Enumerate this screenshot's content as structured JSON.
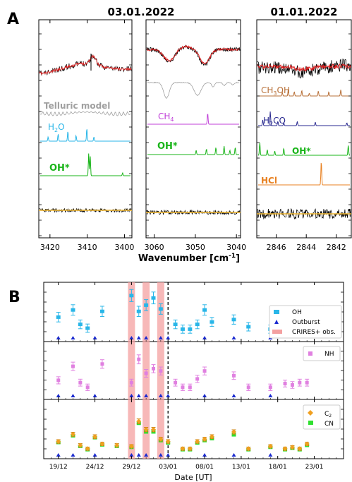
{
  "panel_a": {
    "letter": "A",
    "dates": {
      "left": "03.01.2022",
      "right": "01.01.2022"
    },
    "xlabel": "Wavenumber [cm",
    "xlabel_sup": "-1",
    "xlabel_tail": "]",
    "labels": {
      "telluric": "Telluric model",
      "h2o": "H",
      "h2o_sub": "2",
      "h2o_tail": "O",
      "oh_left": "OH*",
      "ch4": "CH",
      "ch4_sub": "4",
      "oh_mid": "OH*",
      "ch3oh": "CH",
      "ch3oh_sub": "3",
      "ch3oh_tail": "OH",
      "h2co": "H",
      "h2co_sub": "2",
      "h2co_tail": "CO",
      "oh_right": "OH*",
      "hcl": "HCl"
    },
    "colors": {
      "observed": "#000000",
      "model": "#e02020",
      "telluric": "#a0a0a0",
      "h2o": "#29b6e8",
      "oh": "#18b418",
      "ch4": "#c040d8",
      "ch3oh": "#b87038",
      "h2co": "#2a2a90",
      "hcl": "#e88020",
      "residual_fit": "#f2b830"
    }
  },
  "panel_b": {
    "letter": "B",
    "xlabel": "Date [UT]",
    "legend": {
      "oh": "OH",
      "outburst": "Outburst",
      "crires": "CRIRES+ obs.",
      "nh": "NH",
      "c2": "C",
      "c2_sub": "2",
      "cn": "CN"
    },
    "colors": {
      "oh": "#29b6e8",
      "outburst": "#1a2ad0",
      "crires": "#f4a0a0",
      "nh": "#e080e0",
      "c2": "#f0a020",
      "cn": "#30e030"
    }
  },
  "chart_data": [
    {
      "type": "line",
      "panel": "A-left",
      "xlabel": "Wavenumber [cm-1]",
      "xlim": [
        3423,
        3398
      ],
      "xticks": [
        3420,
        3410,
        3400
      ],
      "tick_labels": [
        "3420",
        "3410",
        "3400"
      ],
      "series": [
        {
          "x": [
            3420.5,
            3417.8,
            3415.2,
            3413.0,
            3410.1,
            3408.2
          ]
        },
        {
          "x": [
            3409.6,
            3409.2,
            3400.5
          ]
        }
      ]
    },
    {
      "type": "line",
      "panel": "A-middle",
      "xlabel": "Wavenumber [cm-1]",
      "xlim": [
        3062,
        3039
      ],
      "xticks": [
        3060,
        3050,
        3040
      ],
      "tick_labels": [
        "3060",
        "3050",
        "3040"
      ],
      "series": [
        {
          "x": [
            3047.0
          ]
        },
        {
          "x": [
            3049.8,
            3047.3,
            3045.0,
            3043.0,
            3041.6,
            3040.3
          ]
        }
      ]
    },
    {
      "type": "line",
      "panel": "A-right",
      "xlabel": "Wavenumber [cm-1]",
      "xlim": [
        2847.3,
        2841.0
      ],
      "xticks": [
        2846,
        2844,
        2842
      ],
      "tick_labels": [
        "2846",
        "2844",
        "2842"
      ],
      "series": [
        {
          "x": [
            2845.6,
            2845.2,
            2844.8,
            2844.3,
            2843.8,
            2843.2,
            2842.5,
            2841.7
          ]
        },
        {
          "x": [
            2846.9,
            2846.4,
            2845.9,
            2845.5,
            2844.6,
            2843.4,
            2841.3
          ]
        },
        {
          "x": [
            2847.1,
            2846.6,
            2846.1,
            2845.5,
            2841.2
          ]
        },
        {
          "x": [
            2843.0
          ]
        }
      ]
    },
    {
      "type": "scatter",
      "panel": "B",
      "xlabel": "Date [UT]",
      "xlim": [
        "2021-12-17",
        "2022-01-27"
      ],
      "xticks": [
        "2021-12-19",
        "2021-12-24",
        "2021-12-29",
        "2022-01-03",
        "2022-01-08",
        "2022-01-13",
        "2022-01-18",
        "2022-01-23"
      ],
      "tick_labels": [
        "19/12",
        "24/12",
        "29/12",
        "03/01",
        "08/01",
        "13/01",
        "18/01",
        "23/01"
      ],
      "crires_obs": [
        "2021-12-29",
        "2021-12-31",
        "2022-01-02"
      ],
      "marker_line": "2022-01-03",
      "outbursts": [
        "2021-12-19",
        "2021-12-21",
        "2021-12-24",
        "2021-12-29",
        "2021-12-30",
        "2021-12-31",
        "2022-01-02",
        "2022-01-03",
        "2022-01-08",
        "2022-01-12",
        "2022-01-17"
      ],
      "series": [
        {
          "name": "OH",
          "x": [
            "2021-12-19",
            "2021-12-21",
            "2021-12-22",
            "2021-12-23",
            "2021-12-25",
            "2021-12-29",
            "2021-12-30",
            "2021-12-31",
            "2022-01-01",
            "2022-01-02",
            "2022-01-04",
            "2022-01-05",
            "2022-01-06",
            "2022-01-07",
            "2022-01-08",
            "2022-01-09",
            "2022-01-12",
            "2022-01-14",
            "2022-01-17",
            "2022-01-18",
            "2022-01-19",
            "2022-01-20",
            "2022-01-21",
            "2022-01-22",
            "2022-01-23"
          ],
          "y": [
            0.45,
            0.6,
            0.3,
            0.22,
            0.57,
            0.9,
            0.57,
            0.7,
            0.85,
            0.62,
            0.3,
            0.2,
            0.2,
            0.3,
            0.6,
            0.35,
            0.4,
            0.25,
            0.2,
            0.3,
            0.3,
            0.25,
            0.35,
            0.3,
            0.3
          ]
        },
        {
          "name": "NH",
          "x": [
            "2021-12-19",
            "2021-12-21",
            "2021-12-22",
            "2021-12-23",
            "2021-12-25",
            "2021-12-29",
            "2021-12-30",
            "2021-12-31",
            "2022-01-01",
            "2022-01-02",
            "2022-01-04",
            "2022-01-05",
            "2022-01-06",
            "2022-01-07",
            "2022-01-08",
            "2022-01-12",
            "2022-01-14",
            "2022-01-17",
            "2022-01-19",
            "2022-01-20",
            "2022-01-21",
            "2022-01-22"
          ],
          "y": [
            0.35,
            0.65,
            0.3,
            0.2,
            0.7,
            0.3,
            0.8,
            0.5,
            0.6,
            0.55,
            0.3,
            0.2,
            0.2,
            0.38,
            0.55,
            0.45,
            0.2,
            0.2,
            0.28,
            0.25,
            0.3,
            0.3
          ]
        },
        {
          "name": "C2",
          "x": [
            "2021-12-19",
            "2021-12-21",
            "2021-12-22",
            "2021-12-23",
            "2021-12-24",
            "2021-12-25",
            "2021-12-27",
            "2021-12-29",
            "2021-12-30",
            "2021-12-31",
            "2022-01-01",
            "2022-01-02",
            "2022-01-03",
            "2022-01-05",
            "2022-01-06",
            "2022-01-07",
            "2022-01-08",
            "2022-01-09",
            "2022-01-12",
            "2022-01-14",
            "2022-01-17",
            "2022-01-19",
            "2022-01-20",
            "2022-01-21",
            "2022-01-22"
          ],
          "y": [
            0.3,
            0.45,
            0.22,
            0.15,
            0.4,
            0.25,
            0.22,
            0.2,
            0.72,
            0.55,
            0.55,
            0.35,
            0.3,
            0.15,
            0.15,
            0.3,
            0.35,
            0.4,
            0.5,
            0.15,
            0.2,
            0.15,
            0.18,
            0.15,
            0.25
          ]
        },
        {
          "name": "CN",
          "x": [
            "2021-12-19",
            "2021-12-21",
            "2021-12-22",
            "2021-12-23",
            "2021-12-24",
            "2021-12-25",
            "2021-12-27",
            "2021-12-29",
            "2021-12-30",
            "2021-12-31",
            "2022-01-01",
            "2022-01-02",
            "2022-01-03",
            "2022-01-05",
            "2022-01-06",
            "2022-01-07",
            "2022-01-08",
            "2022-01-09",
            "2022-01-12",
            "2022-01-14",
            "2022-01-17",
            "2022-01-19",
            "2022-01-20",
            "2022-01-21",
            "2022-01-22"
          ],
          "y": [
            0.28,
            0.42,
            0.2,
            0.13,
            0.38,
            0.23,
            0.2,
            0.18,
            0.68,
            0.5,
            0.5,
            0.32,
            0.27,
            0.13,
            0.13,
            0.27,
            0.32,
            0.36,
            0.44,
            0.13,
            0.18,
            0.13,
            0.16,
            0.13,
            0.22
          ]
        }
      ]
    }
  ]
}
